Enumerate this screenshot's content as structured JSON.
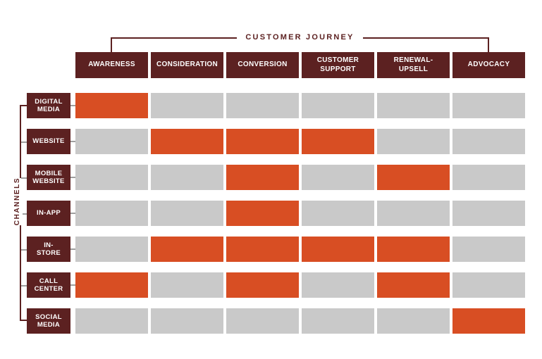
{
  "diagram": {
    "title": "CUSTOMER JOURNEY",
    "axis_label": "CHANNELS",
    "columns": [
      "AWARENESS",
      "CONSIDERATION",
      "CONVERSION",
      "CUSTOMER\nSUPPORT",
      "RENEWAL-\nUPSELL",
      "ADVOCACY"
    ],
    "rows": [
      {
        "label": "DIGITAL\nMEDIA",
        "cells": [
          1,
          0,
          0,
          0,
          0,
          0
        ]
      },
      {
        "label": "WEBSITE",
        "cells": [
          0,
          1,
          1,
          1,
          0,
          0
        ]
      },
      {
        "label": "MOBILE\nWEBSITE",
        "cells": [
          0,
          0,
          1,
          0,
          1,
          0
        ]
      },
      {
        "label": "IN-APP",
        "cells": [
          0,
          0,
          1,
          0,
          0,
          0
        ]
      },
      {
        "label": "IN-\nSTORE",
        "cells": [
          0,
          1,
          1,
          1,
          1,
          0
        ]
      },
      {
        "label": "CALL\nCENTER",
        "cells": [
          1,
          0,
          1,
          0,
          1,
          0
        ]
      },
      {
        "label": "SOCIAL\nMEDIA",
        "cells": [
          0,
          0,
          0,
          0,
          0,
          1
        ]
      }
    ],
    "colors": {
      "header": "#5c2121",
      "active": "#d84e23",
      "inactive": "#c9c9c9",
      "tick": "#9e9e9e"
    }
  },
  "chart_data": {
    "type": "heatmap",
    "title": "CUSTOMER JOURNEY",
    "x_categories": [
      "AWARENESS",
      "CONSIDERATION",
      "CONVERSION",
      "CUSTOMER SUPPORT",
      "RENEWAL-UPSELL",
      "ADVOCACY"
    ],
    "y_categories": [
      "DIGITAL MEDIA",
      "WEBSITE",
      "MOBILE WEBSITE",
      "IN-APP",
      "IN-STORE",
      "CALL CENTER",
      "SOCIAL MEDIA"
    ],
    "ylabel": "CHANNELS",
    "values": [
      [
        1,
        0,
        0,
        0,
        0,
        0
      ],
      [
        0,
        1,
        1,
        1,
        0,
        0
      ],
      [
        0,
        0,
        1,
        0,
        1,
        0
      ],
      [
        0,
        0,
        1,
        0,
        0,
        0
      ],
      [
        0,
        1,
        1,
        1,
        1,
        0
      ],
      [
        1,
        0,
        1,
        0,
        1,
        0
      ],
      [
        0,
        0,
        0,
        0,
        0,
        1
      ]
    ],
    "value_meaning": "1 = channel active at journey stage (orange cell), 0 = inactive (gray cell)",
    "legend_position": "none",
    "grid": false
  }
}
